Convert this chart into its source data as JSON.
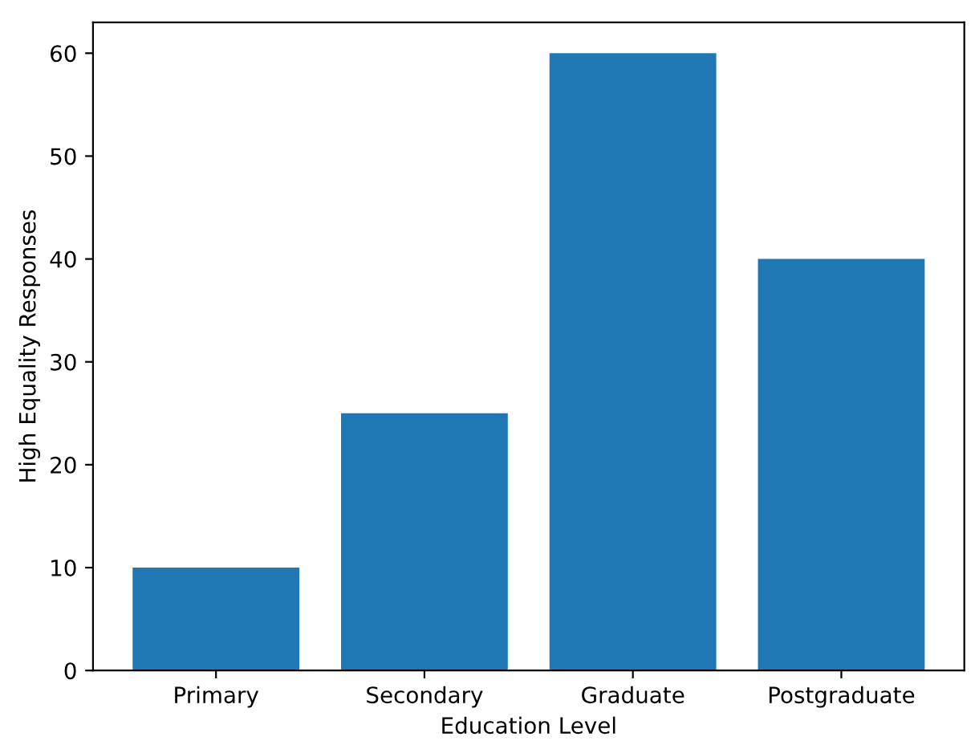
{
  "chart_data": {
    "type": "bar",
    "xlabel": "Education Level",
    "ylabel": "High Equality Responses",
    "categories": [
      "Primary",
      "Secondary",
      "Graduate",
      "Postgraduate"
    ],
    "values": [
      10,
      25,
      60,
      40
    ],
    "color": "#1f77b4",
    "ylim": [
      0,
      63
    ],
    "yticks": [
      0,
      10,
      20,
      30,
      40,
      50,
      60
    ],
    "grid": false
  }
}
